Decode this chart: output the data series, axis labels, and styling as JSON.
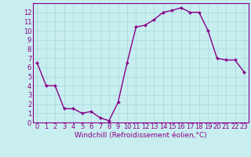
{
  "x": [
    0,
    1,
    2,
    3,
    4,
    5,
    6,
    7,
    8,
    9,
    10,
    11,
    12,
    13,
    14,
    15,
    16,
    17,
    18,
    19,
    20,
    21,
    22,
    23
  ],
  "y": [
    6.5,
    4.0,
    4.0,
    1.5,
    1.5,
    1.0,
    1.2,
    0.5,
    0.2,
    2.2,
    6.5,
    10.4,
    10.6,
    11.2,
    12.0,
    12.2,
    12.5,
    12.0,
    12.0,
    10.0,
    7.0,
    6.8,
    6.8,
    5.5
  ],
  "line_color": "#880088",
  "marker": "D",
  "marker_size": 2.0,
  "bg_color": "#c8eef0",
  "grid_color": "#a8d8dc",
  "xlabel": "Windchill (Refroidissement éolien,°C)",
  "xlim": [
    -0.5,
    23.5
  ],
  "ylim": [
    0,
    13
  ],
  "yticks": [
    0,
    1,
    2,
    3,
    4,
    5,
    6,
    7,
    8,
    9,
    10,
    11,
    12
  ],
  "xticks": [
    0,
    1,
    2,
    3,
    4,
    5,
    6,
    7,
    8,
    9,
    10,
    11,
    12,
    13,
    14,
    15,
    16,
    17,
    18,
    19,
    20,
    21,
    22,
    23
  ],
  "label_color": "#880088",
  "xlabel_fontsize": 6.5,
  "tick_fontsize": 6.0,
  "spine_color": "#880088",
  "linewidth": 1.0
}
